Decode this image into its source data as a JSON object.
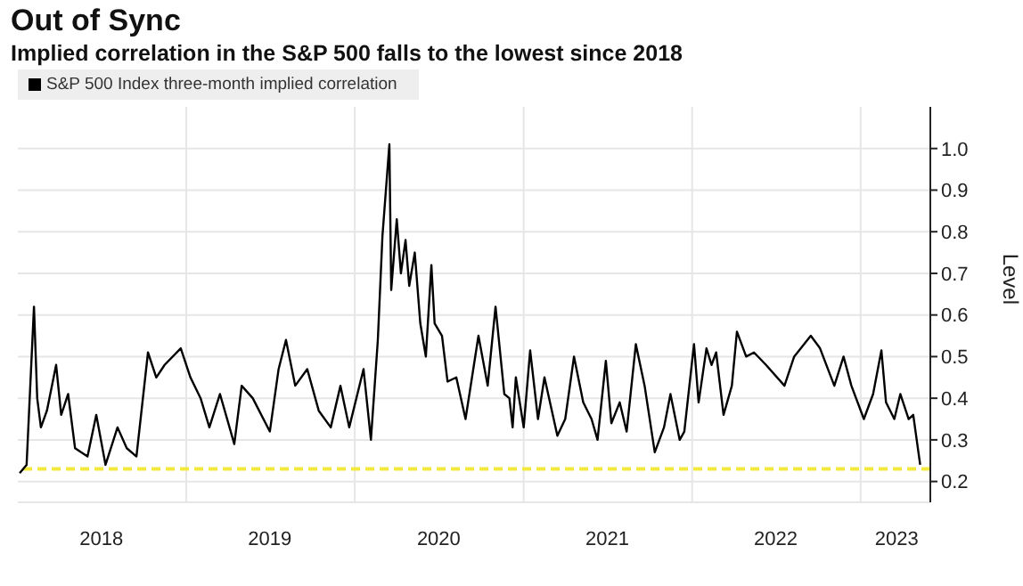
{
  "chart_data": {
    "type": "line",
    "title": "Out of Sync",
    "subtitle": "Implied correlation in the S&P 500 falls to the lowest since 2018",
    "ylabel": "Level",
    "x": [
      "2018-01-05",
      "2018-01-20",
      "2018-02-05",
      "2018-02-12",
      "2018-02-20",
      "2018-03-05",
      "2018-03-25",
      "2018-04-05",
      "2018-04-20",
      "2018-05-05",
      "2018-06-01",
      "2018-06-20",
      "2018-07-10",
      "2018-08-05",
      "2018-08-25",
      "2018-09-15",
      "2018-10-10",
      "2018-10-28",
      "2018-11-15",
      "2018-12-20",
      "2019-01-10",
      "2019-02-01",
      "2019-02-20",
      "2019-03-15",
      "2019-04-15",
      "2019-05-01",
      "2019-05-25",
      "2019-07-01",
      "2019-07-20",
      "2019-08-05",
      "2019-08-25",
      "2019-09-20",
      "2019-10-15",
      "2019-11-10",
      "2019-12-01",
      "2019-12-20",
      "2020-01-20",
      "2020-02-05",
      "2020-02-20",
      "2020-03-01",
      "2020-03-16",
      "2020-03-20",
      "2020-04-01",
      "2020-04-10",
      "2020-04-20",
      "2020-04-28",
      "2020-05-10",
      "2020-05-22",
      "2020-06-03",
      "2020-06-15",
      "2020-06-22",
      "2020-07-08",
      "2020-07-20",
      "2020-08-08",
      "2020-08-28",
      "2020-09-25",
      "2020-10-15",
      "2020-11-01",
      "2020-11-20",
      "2020-12-01",
      "2020-12-08",
      "2020-12-15",
      "2021-01-01",
      "2021-01-15",
      "2021-02-01",
      "2021-02-15",
      "2021-03-15",
      "2021-04-01",
      "2021-04-20",
      "2021-05-10",
      "2021-05-28",
      "2021-06-10",
      "2021-06-28",
      "2021-07-10",
      "2021-07-28",
      "2021-08-12",
      "2021-09-01",
      "2021-09-20",
      "2021-10-12",
      "2021-11-01",
      "2021-11-15",
      "2021-12-05",
      "2021-12-15",
      "2022-01-05",
      "2022-01-15",
      "2022-02-01",
      "2022-02-12",
      "2022-02-22",
      "2022-03-10",
      "2022-03-28",
      "2022-04-08",
      "2022-04-28",
      "2022-05-15",
      "2022-06-10",
      "2022-07-20",
      "2022-08-10",
      "2022-09-15",
      "2022-10-05",
      "2022-11-05",
      "2022-11-25",
      "2022-12-12",
      "2023-01-08",
      "2023-01-28",
      "2023-02-15",
      "2023-02-25",
      "2023-03-15",
      "2023-03-28",
      "2023-04-15",
      "2023-04-25",
      "2023-05-10"
    ],
    "series": [
      {
        "name": "S&P 500 Index three-month implied correlation",
        "color": "#000000",
        "values": [
          0.22,
          0.24,
          0.62,
          0.4,
          0.33,
          0.37,
          0.48,
          0.36,
          0.41,
          0.28,
          0.26,
          0.36,
          0.24,
          0.33,
          0.28,
          0.26,
          0.51,
          0.45,
          0.48,
          0.52,
          0.45,
          0.4,
          0.33,
          0.41,
          0.29,
          0.43,
          0.4,
          0.32,
          0.47,
          0.54,
          0.43,
          0.47,
          0.37,
          0.33,
          0.43,
          0.33,
          0.47,
          0.3,
          0.54,
          0.79,
          1.01,
          0.66,
          0.83,
          0.7,
          0.78,
          0.67,
          0.75,
          0.58,
          0.5,
          0.72,
          0.58,
          0.55,
          0.44,
          0.45,
          0.35,
          0.55,
          0.43,
          0.62,
          0.41,
          0.4,
          0.33,
          0.45,
          0.33,
          0.515,
          0.35,
          0.45,
          0.31,
          0.35,
          0.5,
          0.39,
          0.35,
          0.3,
          0.49,
          0.34,
          0.39,
          0.32,
          0.53,
          0.43,
          0.27,
          0.33,
          0.41,
          0.3,
          0.32,
          0.53,
          0.39,
          0.52,
          0.48,
          0.51,
          0.36,
          0.43,
          0.56,
          0.5,
          0.51,
          0.48,
          0.43,
          0.5,
          0.55,
          0.52,
          0.43,
          0.5,
          0.43,
          0.35,
          0.41,
          0.515,
          0.39,
          0.35,
          0.41,
          0.35,
          0.36,
          0.24
        ]
      }
    ],
    "xlim": [
      "2018-01-01",
      "2023-06-01"
    ],
    "xticks": [
      {
        "value": "2018-07-01",
        "label": "2018"
      },
      {
        "value": "2019-01-01",
        "label": null
      },
      {
        "value": "2019-07-01",
        "label": "2019"
      },
      {
        "value": "2020-01-01",
        "label": null
      },
      {
        "value": "2020-07-01",
        "label": "2020"
      },
      {
        "value": "2021-01-01",
        "label": null
      },
      {
        "value": "2021-07-01",
        "label": "2021"
      },
      {
        "value": "2022-01-01",
        "label": null
      },
      {
        "value": "2022-07-01",
        "label": "2022"
      },
      {
        "value": "2023-01-01",
        "label": null
      },
      {
        "value": "2023-03-20",
        "label": "2023"
      }
    ],
    "ylim": [
      0.15,
      1.1
    ],
    "yticks": [
      0.2,
      0.3,
      0.4,
      0.5,
      0.6,
      0.7,
      0.8,
      0.9,
      {
        "value": 1,
        "label": "1.0"
      }
    ],
    "ref_lines": [
      {
        "axis": "y",
        "value": 0.23,
        "label": null,
        "color": "#f2e93c",
        "line_style": "dashed"
      }
    ],
    "grid": true,
    "legend": "top left",
    "marker": "none",
    "line_style": "solid"
  }
}
